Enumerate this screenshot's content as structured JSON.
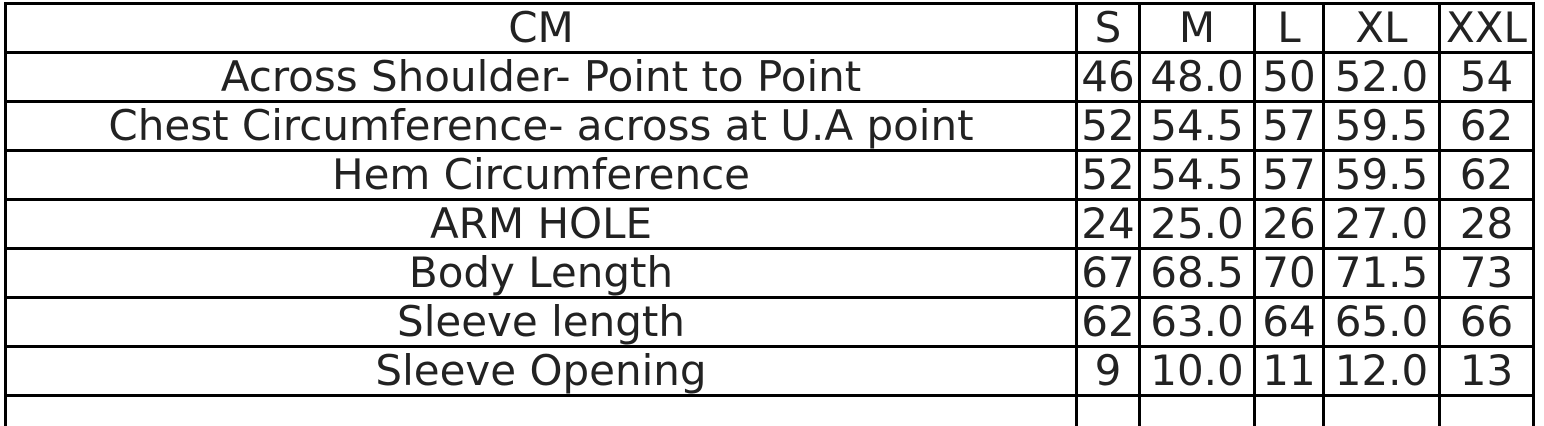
{
  "table": {
    "header": [
      "CM",
      "S",
      "M",
      "L",
      "XL",
      "XXL"
    ],
    "rows": [
      [
        "Across Shoulder- Point to Point",
        "46",
        "48.0",
        "50",
        "52.0",
        "54"
      ],
      [
        "Chest Circumference- across at U.A point",
        "52",
        "54.5",
        "57",
        "59.5",
        "62"
      ],
      [
        "Hem Circumference",
        "52",
        "54.5",
        "57",
        "59.5",
        "62"
      ],
      [
        "ARM HOLE",
        "24",
        "25.0",
        "26",
        "27.0",
        "28"
      ],
      [
        "Body Length",
        "67",
        "68.5",
        "70",
        "71.5",
        "73"
      ],
      [
        "Sleeve length",
        "62",
        "63.0",
        "64",
        "65.0",
        "66"
      ],
      [
        "Sleeve Opening",
        "9",
        "10.0",
        "11",
        "12.0",
        "13"
      ]
    ]
  }
}
